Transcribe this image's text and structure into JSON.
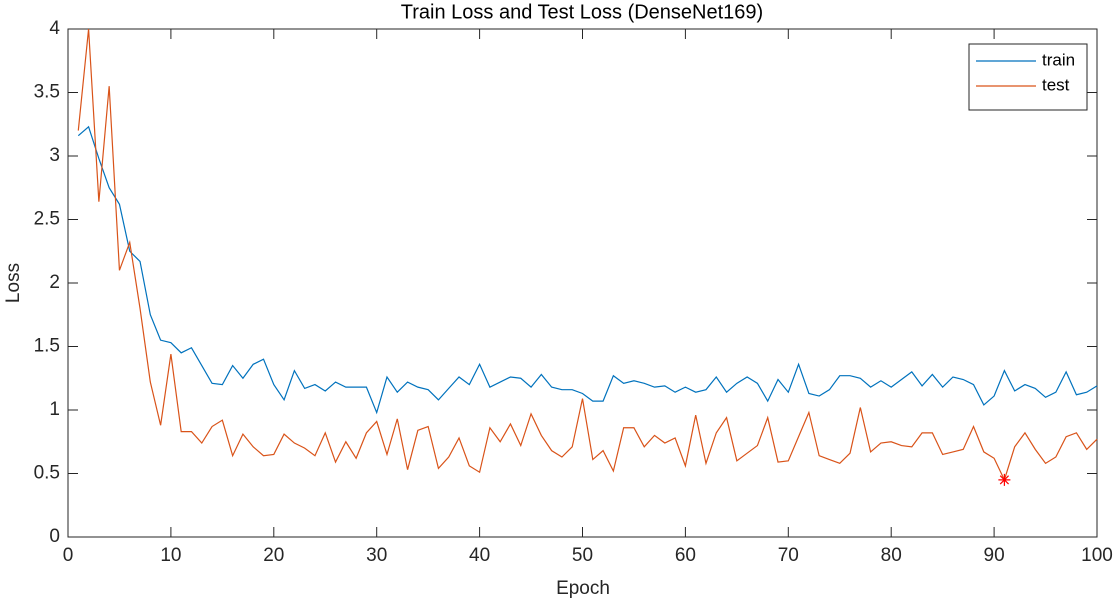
{
  "chart_data": {
    "type": "line",
    "title": "Train Loss and Test Loss (DenseNet169)",
    "xlabel": "Epoch",
    "ylabel": "Loss",
    "x": [
      1,
      2,
      3,
      4,
      5,
      6,
      7,
      8,
      9,
      10,
      11,
      12,
      13,
      14,
      15,
      16,
      17,
      18,
      19,
      20,
      21,
      22,
      23,
      24,
      25,
      26,
      27,
      28,
      29,
      30,
      31,
      32,
      33,
      34,
      35,
      36,
      37,
      38,
      39,
      40,
      41,
      42,
      43,
      44,
      45,
      46,
      47,
      48,
      49,
      50,
      51,
      52,
      53,
      54,
      55,
      56,
      57,
      58,
      59,
      60,
      61,
      62,
      63,
      64,
      65,
      66,
      67,
      68,
      69,
      70,
      71,
      72,
      73,
      74,
      75,
      76,
      77,
      78,
      79,
      80,
      81,
      82,
      83,
      84,
      85,
      86,
      87,
      88,
      89,
      90,
      91,
      92,
      93,
      94,
      95,
      96,
      97,
      98,
      99,
      100
    ],
    "series": [
      {
        "name": "train",
        "color": "#0072bd",
        "values": [
          3.16,
          3.23,
          2.98,
          2.75,
          2.62,
          2.25,
          2.17,
          1.75,
          1.55,
          1.53,
          1.45,
          1.49,
          1.35,
          1.21,
          1.2,
          1.35,
          1.25,
          1.36,
          1.4,
          1.2,
          1.08,
          1.31,
          1.17,
          1.2,
          1.15,
          1.22,
          1.18,
          1.18,
          1.18,
          0.98,
          1.26,
          1.14,
          1.22,
          1.18,
          1.16,
          1.08,
          1.17,
          1.26,
          1.2,
          1.36,
          1.18,
          1.22,
          1.26,
          1.25,
          1.18,
          1.28,
          1.18,
          1.16,
          1.16,
          1.13,
          1.07,
          1.07,
          1.27,
          1.21,
          1.23,
          1.21,
          1.18,
          1.19,
          1.14,
          1.18,
          1.14,
          1.16,
          1.26,
          1.14,
          1.21,
          1.26,
          1.21,
          1.07,
          1.24,
          1.14,
          1.36,
          1.13,
          1.11,
          1.16,
          1.27,
          1.27,
          1.25,
          1.18,
          1.23,
          1.18,
          1.24,
          1.3,
          1.19,
          1.28,
          1.18,
          1.26,
          1.24,
          1.2,
          1.04,
          1.11,
          1.31,
          1.15,
          1.2,
          1.17,
          1.1,
          1.14,
          1.3,
          1.12,
          1.14,
          1.19
        ]
      },
      {
        "name": "test",
        "color": "#d95319",
        "values": [
          3.2,
          4.0,
          2.64,
          3.55,
          2.1,
          2.32,
          1.8,
          1.22,
          0.88,
          1.44,
          0.83,
          0.83,
          0.74,
          0.87,
          0.92,
          0.64,
          0.81,
          0.71,
          0.64,
          0.65,
          0.81,
          0.74,
          0.7,
          0.64,
          0.82,
          0.59,
          0.75,
          0.62,
          0.82,
          0.91,
          0.65,
          0.93,
          0.53,
          0.84,
          0.87,
          0.54,
          0.63,
          0.78,
          0.56,
          0.51,
          0.86,
          0.75,
          0.89,
          0.72,
          0.97,
          0.8,
          0.68,
          0.63,
          0.71,
          1.09,
          0.61,
          0.68,
          0.52,
          0.86,
          0.86,
          0.71,
          0.8,
          0.74,
          0.78,
          0.56,
          0.96,
          0.58,
          0.82,
          0.94,
          0.6,
          0.66,
          0.72,
          0.94,
          0.59,
          0.6,
          0.79,
          0.98,
          0.64,
          0.61,
          0.58,
          0.66,
          1.02,
          0.67,
          0.74,
          0.75,
          0.72,
          0.71,
          0.82,
          0.82,
          0.65,
          0.67,
          0.69,
          0.87,
          0.67,
          0.62,
          0.45,
          0.71,
          0.82,
          0.69,
          0.58,
          0.63,
          0.79,
          0.82,
          0.69,
          0.77
        ]
      }
    ],
    "best_point": {
      "x": 91,
      "y": 0.45,
      "color": "#ff0000"
    },
    "xlim": [
      0,
      100
    ],
    "xticks": [
      0,
      10,
      20,
      30,
      40,
      50,
      60,
      70,
      80,
      90,
      100
    ],
    "ylim": [
      0,
      4
    ],
    "yticks": [
      0,
      0.5,
      1,
      1.5,
      2,
      2.5,
      3,
      3.5,
      4
    ],
    "grid": false,
    "legend": "northeast"
  }
}
